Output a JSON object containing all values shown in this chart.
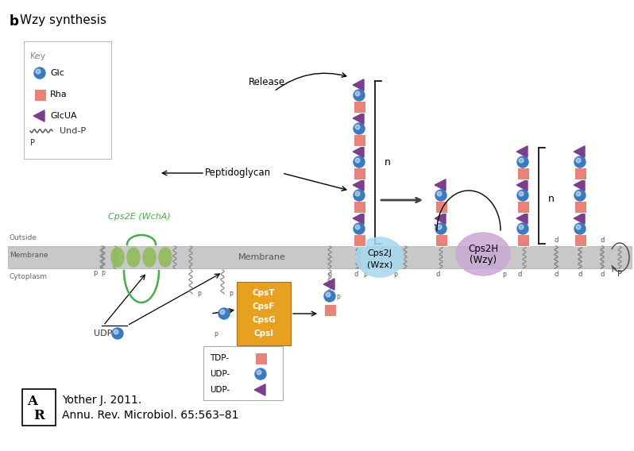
{
  "title_b": "b",
  "title_main": " Wzy synthesis",
  "bg_color": "#ffffff",
  "glc_color": "#3a7abf",
  "rha_color": "#e8837a",
  "glcua_color": "#7b3f8c",
  "cps2e_color": "#4caa4c",
  "wzx_color": "#a8d8f0",
  "wzy_color": "#c9a8d4",
  "cpst_color": "#e8a020",
  "mem_color": "#c8c8c8",
  "citation": "Yother J. 2011.\nAnnu. Rev. Microbiol. 65:563–81"
}
